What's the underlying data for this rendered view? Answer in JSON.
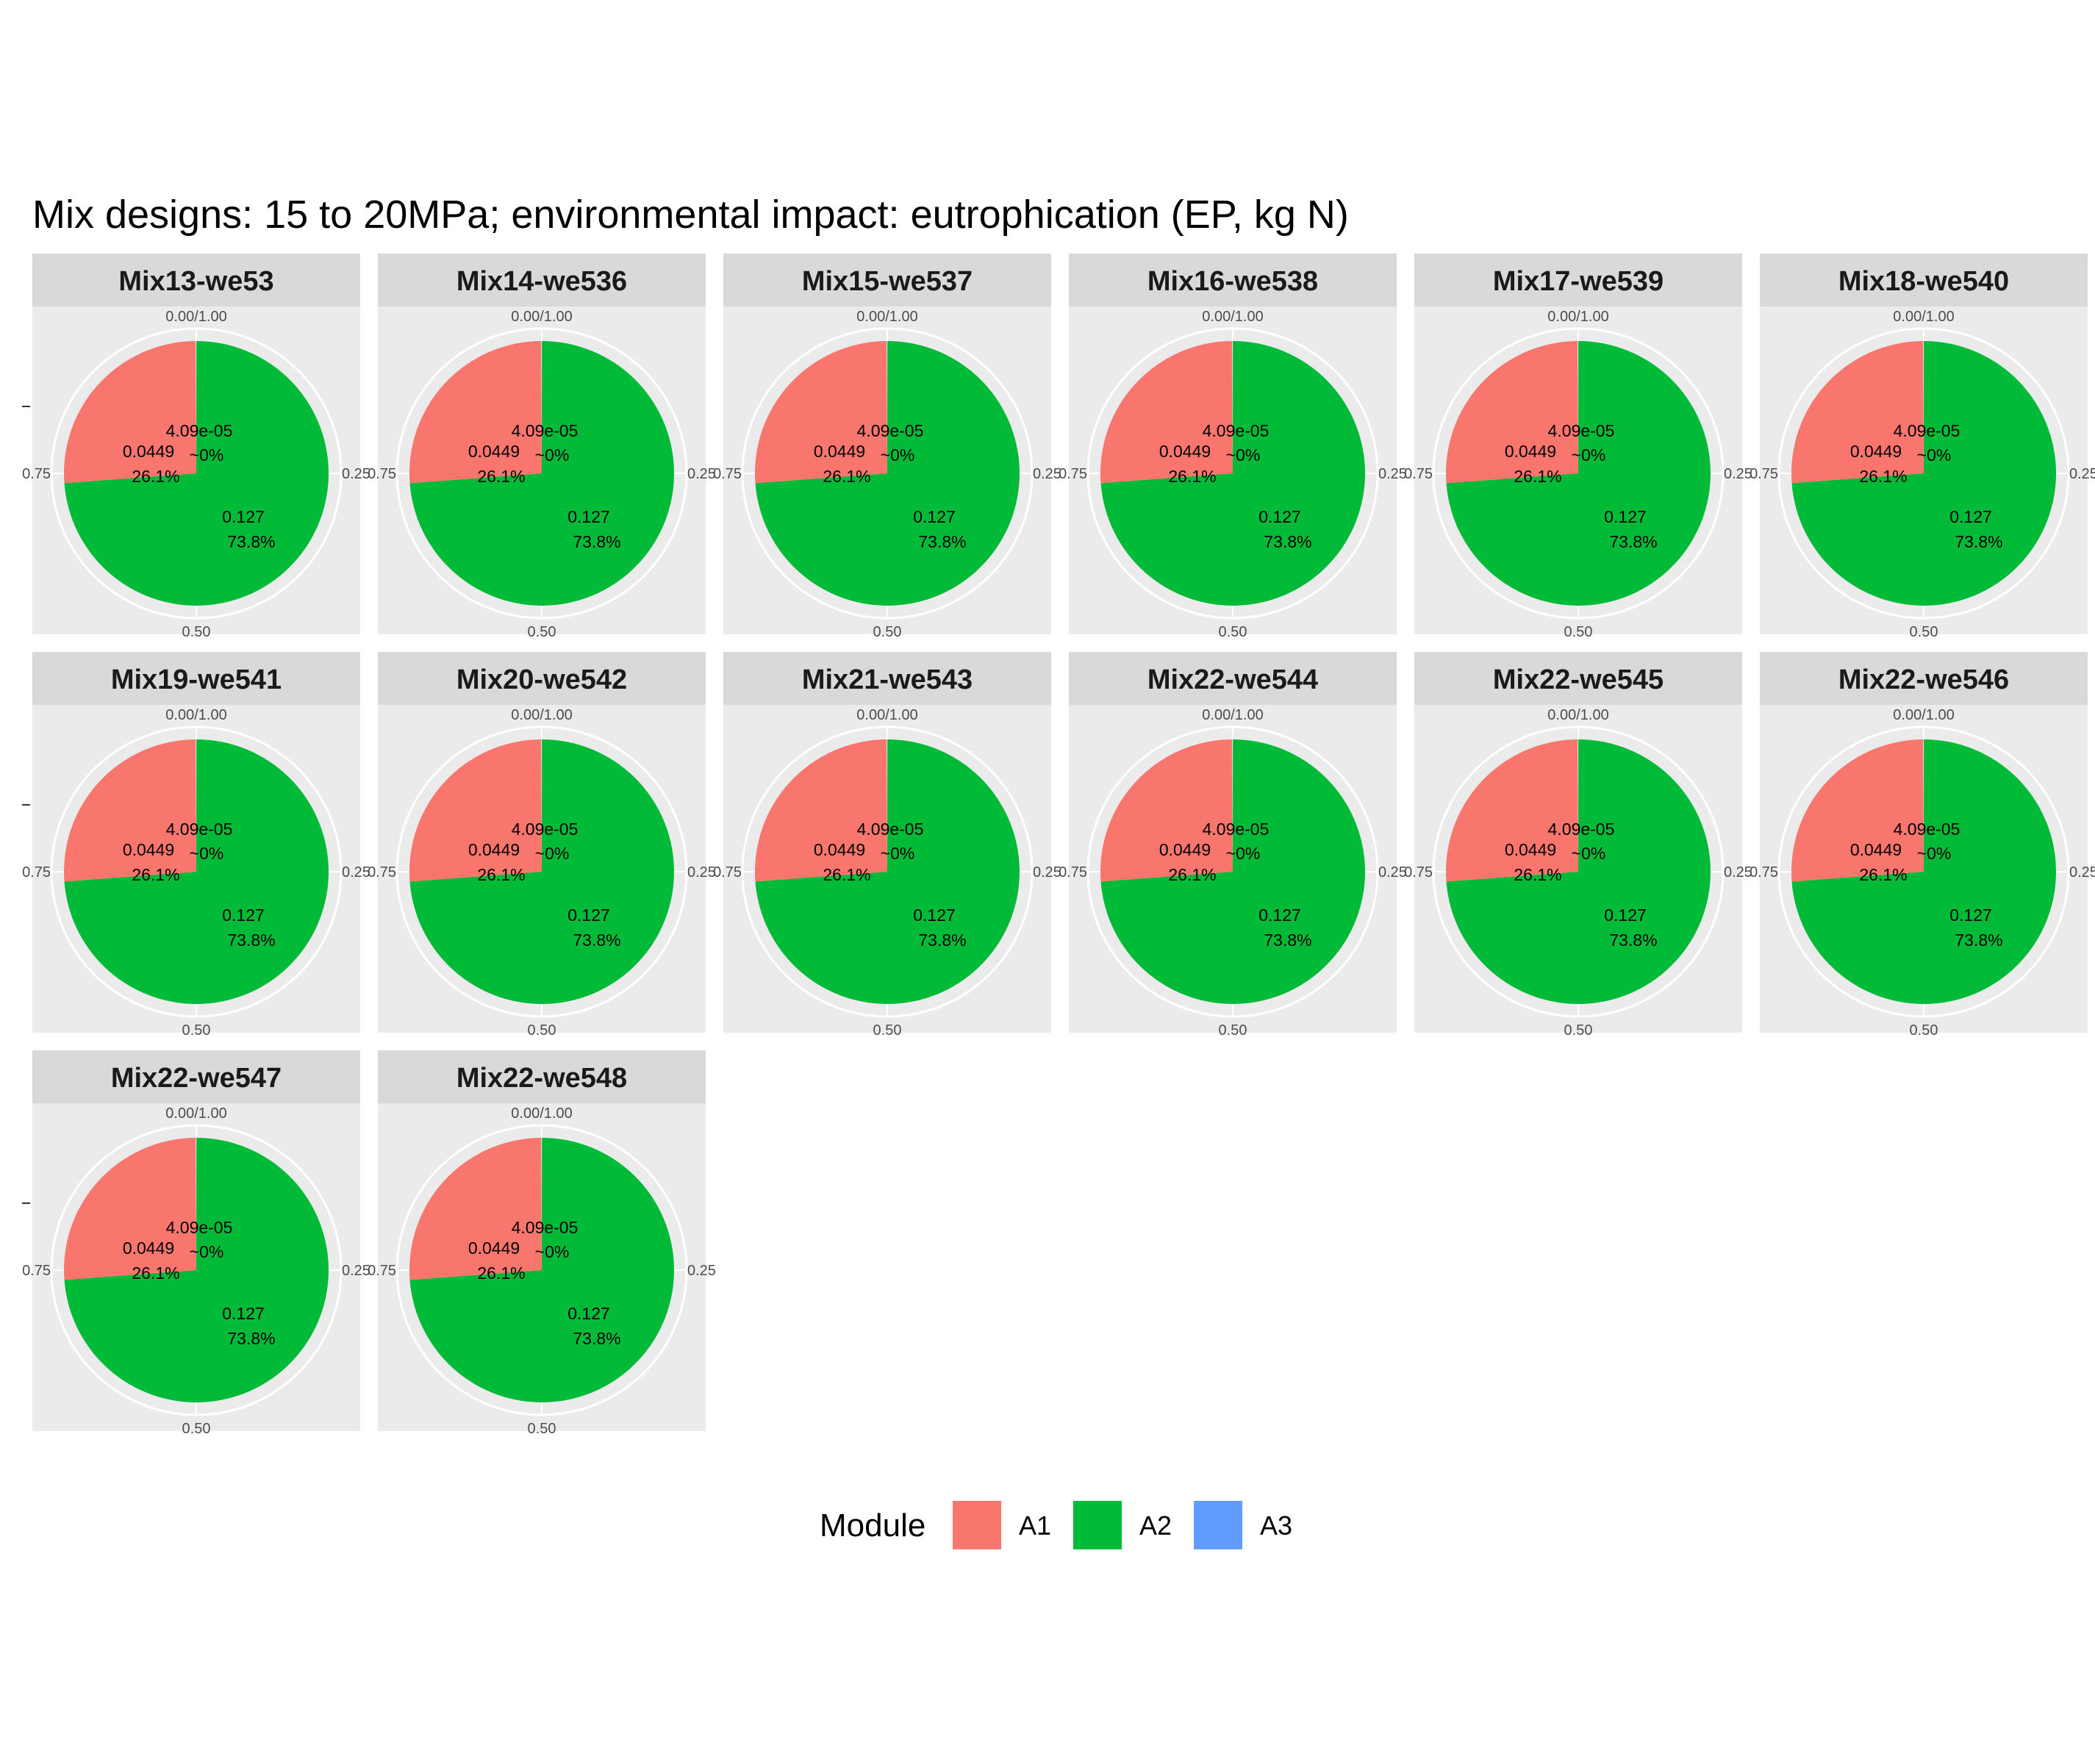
{
  "chart_data": {
    "type": "pie",
    "title": "Mix designs: 15 to 20MPa; environmental impact: eutrophication (EP, kg N)",
    "theta_ticks": [
      "0.00/1.00",
      "0.25",
      "0.50",
      "0.75"
    ],
    "legend": {
      "title": "Module",
      "position": "bottom",
      "entries": [
        {
          "name": "A1",
          "color": "#F8766D"
        },
        {
          "name": "A2",
          "color": "#00BA38"
        },
        {
          "name": "A3",
          "color": "#619CFF"
        }
      ]
    },
    "panels": [
      {
        "name": "Mix13-we53"
      },
      {
        "name": "Mix14-we536"
      },
      {
        "name": "Mix15-we537"
      },
      {
        "name": "Mix16-we538"
      },
      {
        "name": "Mix17-we539"
      },
      {
        "name": "Mix18-we540"
      },
      {
        "name": "Mix19-we541"
      },
      {
        "name": "Mix20-we542"
      },
      {
        "name": "Mix21-we543"
      },
      {
        "name": "Mix22-we544"
      },
      {
        "name": "Mix22-we545"
      },
      {
        "name": "Mix22-we546"
      },
      {
        "name": "Mix22-we547"
      },
      {
        "name": "Mix22-we548"
      }
    ],
    "slices": [
      {
        "module": "A3",
        "value": 4.09e-05,
        "fraction": 0.0002,
        "value_label": "4.09e-05",
        "pct_label": "~0%",
        "color": "#619CFF"
      },
      {
        "module": "A2",
        "value": 0.127,
        "fraction": 0.738,
        "value_label": "0.127",
        "pct_label": "73.8%",
        "color": "#00BA38"
      },
      {
        "module": "A1",
        "value": 0.0449,
        "fraction": 0.261,
        "value_label": "0.0449",
        "pct_label": "26.1%",
        "color": "#F8766D"
      }
    ]
  }
}
